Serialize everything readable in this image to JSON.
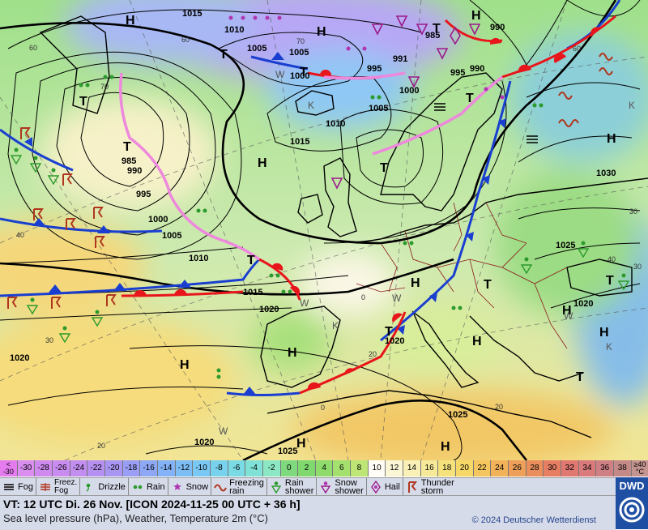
{
  "map": {
    "highs": [
      "H",
      "H",
      "H",
      "H",
      "H",
      "H",
      "H",
      "H",
      "H",
      "H",
      "H",
      "H",
      "H"
    ],
    "lows": [
      "T",
      "T",
      "T",
      "T",
      "T",
      "T",
      "T",
      "T",
      "T",
      "T",
      "T",
      "T"
    ],
    "isobar_labels": [
      "1015",
      "1010",
      "1005",
      "1005",
      "1000",
      "995",
      "991",
      "985",
      "990",
      "990",
      "995",
      "1005",
      "1000",
      "1010",
      "1015",
      "985",
      "990",
      "995",
      "1000",
      "1005",
      "1010",
      "1015",
      "1020",
      "1020",
      "1020",
      "1025",
      "1030",
      "1025",
      "1020",
      "1025",
      "1020"
    ],
    "temp_contour_labels": [
      "60",
      "60",
      "70",
      "70",
      "60",
      "40",
      "40",
      "30",
      "30",
      "20",
      "20",
      "0",
      "0",
      "20",
      "30"
    ],
    "letter_K": [
      "K",
      "K",
      "K",
      "K"
    ],
    "letter_W": [
      "W",
      "W",
      "W",
      "W",
      "W"
    ],
    "colors": {
      "isobar": "#000000",
      "cold_front": "#1a3fd0",
      "warm_front": "#e8151b",
      "occluded_front": "#ee88dd",
      "coast": "#000000",
      "border": "#8b1a1a"
    }
  },
  "scale": {
    "first_top": "<",
    "first_bottom": "-30",
    "last_top": "≥40",
    "last_bottom": "°C",
    "labels": [
      "-30",
      "-28",
      "-26",
      "-24",
      "-22",
      "-20",
      "-18",
      "-16",
      "-14",
      "-12",
      "-10",
      "-8",
      "-6",
      "-4",
      "-2",
      "0",
      "2",
      "4",
      "6",
      "8",
      "10",
      "12",
      "14",
      "16",
      "18",
      "20",
      "22",
      "24",
      "26",
      "28",
      "30",
      "32",
      "34",
      "36",
      "38"
    ],
    "colors": [
      "#d98ef0",
      "#cf8aef",
      "#c98cf0",
      "#c28ef0",
      "#b690f0",
      "#a996f2",
      "#9a9ef4",
      "#8ea8f5",
      "#84b2f6",
      "#7dbdf6",
      "#7ac8f4",
      "#78d2ee",
      "#7adbe4",
      "#80e2d6",
      "#8ce8c4",
      "#7fd97e",
      "#7fd96f",
      "#8fdc6c",
      "#a4e06e",
      "#bde676",
      "#fffdf5",
      "#fbf6d6",
      "#f8f0b6",
      "#f6e99a",
      "#f5e27c",
      "#f5d868",
      "#f5c55f",
      "#f2b25a",
      "#eea05a",
      "#ea8e5c",
      "#e67e64",
      "#e07770",
      "#d97a7c",
      "#cf8084",
      "#c58a88"
    ],
    "first_color": "#e47cf0",
    "last_color": "#c49490"
  },
  "legend": {
    "items": [
      {
        "icon": "fog-icon",
        "label": "Fog"
      },
      {
        "icon": "freezing-fog-icon",
        "label": "Freez.\nFog"
      },
      {
        "icon": "drizzle-icon",
        "label": "Drizzle"
      },
      {
        "icon": "rain-icon",
        "label": "Rain"
      },
      {
        "icon": "snow-icon",
        "label": "Snow"
      },
      {
        "icon": "freezing-rain-icon",
        "label": "Freezing\nrain"
      },
      {
        "icon": "rain-shower-icon",
        "label": "Rain\nshower"
      },
      {
        "icon": "snow-shower-icon",
        "label": "Snow\nshower"
      },
      {
        "icon": "hail-icon",
        "label": "Hail"
      },
      {
        "icon": "thunderstorm-icon",
        "label": "Thunder\nstorm"
      }
    ]
  },
  "info": {
    "vt_line": "VT: 12 UTC Di.  26 Nov. [ICON 2024-11-25  00 UTC + 36 h]",
    "description": "Sea level pressure (hPa), Weather, Temperature 2m (°C)",
    "copyright": "© 2024 Deutscher Wetterdienst"
  },
  "logo": {
    "text": "DWD"
  }
}
